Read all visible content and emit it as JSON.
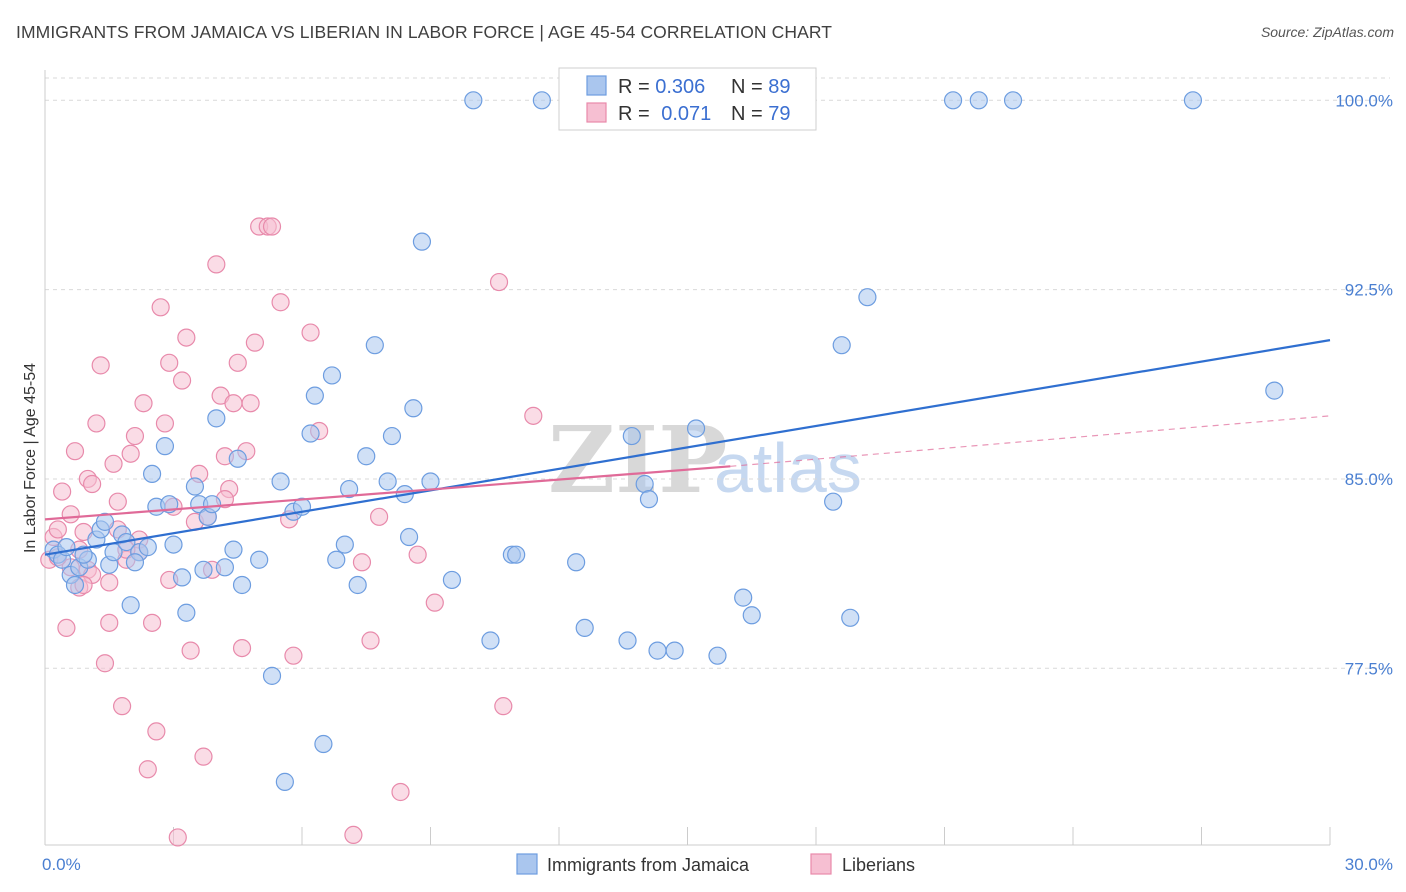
{
  "title": "IMMIGRANTS FROM JAMAICA VS LIBERIAN IN LABOR FORCE | AGE 45-54 CORRELATION CHART",
  "source": "Source: ZipAtlas.com",
  "watermark": {
    "zip": "ZIP",
    "atlas": "atlas"
  },
  "legend_top": [
    {
      "r_label": "R = ",
      "r_value": "0.306",
      "n_label": "N = ",
      "n_value": "89"
    },
    {
      "r_label": "R = ",
      "r_value": "0.071",
      "n_label": "N = ",
      "n_value": "79"
    }
  ],
  "legend_bottom": [
    "Immigrants from Jamaica",
    "Liberians"
  ],
  "colors": {
    "blue_fill": "#aac6ee",
    "blue_stroke": "#6d9de0",
    "blue_line": "#2f6fd0",
    "pink_fill": "#f6bfd2",
    "pink_stroke": "#e88aab",
    "pink_line": "#e06a98",
    "grid": "#d9d9d9",
    "tick_text": "#4a7fd1"
  },
  "chart_data": {
    "type": "scatter",
    "title": "IMMIGRANTS FROM JAMAICA VS LIBERIAN IN LABOR FORCE | AGE 45-54 CORRELATION CHART",
    "ylabel": "In Labor Force | Age 45-54",
    "xlabel": "",
    "xlim": [
      0,
      30
    ],
    "ylim": [
      70.5,
      101.2
    ],
    "x_tick_labels": [
      {
        "value": 0,
        "label": "0.0%"
      },
      {
        "value": 30,
        "label": "30.0%"
      }
    ],
    "y_tick_labels": [
      {
        "value": 100,
        "label": "100.0%"
      },
      {
        "value": 92.5,
        "label": "92.5%"
      },
      {
        "value": 85,
        "label": "85.0%"
      },
      {
        "value": 77.5,
        "label": "77.5%"
      }
    ],
    "grid": true,
    "legend_position": "top-center",
    "series": [
      {
        "name": "Immigrants from Jamaica",
        "r": 0.306,
        "n": 89,
        "trend": {
          "x": [
            0,
            30
          ],
          "y": [
            82.0,
            90.5
          ],
          "dashed_extension": false
        },
        "points": [
          [
            0.2,
            82.2
          ],
          [
            0.3,
            82.0
          ],
          [
            0.4,
            81.8
          ],
          [
            0.5,
            82.3
          ],
          [
            0.6,
            81.2
          ],
          [
            0.7,
            80.8
          ],
          [
            0.8,
            81.5
          ],
          [
            1.0,
            81.8
          ],
          [
            1.2,
            82.6
          ],
          [
            1.3,
            83.0
          ],
          [
            1.4,
            83.3
          ],
          [
            1.5,
            81.6
          ],
          [
            1.6,
            82.1
          ],
          [
            1.8,
            82.8
          ],
          [
            1.9,
            82.5
          ],
          [
            2.0,
            80.0
          ],
          [
            2.2,
            82.1
          ],
          [
            2.4,
            82.3
          ],
          [
            2.5,
            85.2
          ],
          [
            2.6,
            83.9
          ],
          [
            2.8,
            86.3
          ],
          [
            2.9,
            84.0
          ],
          [
            3.0,
            82.4
          ],
          [
            3.2,
            81.1
          ],
          [
            3.3,
            79.7
          ],
          [
            3.5,
            84.7
          ],
          [
            3.6,
            84.0
          ],
          [
            3.7,
            81.4
          ],
          [
            3.8,
            83.5
          ],
          [
            4.0,
            87.4
          ],
          [
            4.2,
            81.5
          ],
          [
            4.4,
            82.2
          ],
          [
            4.5,
            85.8
          ],
          [
            4.6,
            80.8
          ],
          [
            5.0,
            81.8
          ],
          [
            5.3,
            77.2
          ],
          [
            5.5,
            84.9
          ],
          [
            5.6,
            73.0
          ],
          [
            5.8,
            83.7
          ],
          [
            6.0,
            83.9
          ],
          [
            6.2,
            86.8
          ],
          [
            6.3,
            88.3
          ],
          [
            6.5,
            74.5
          ],
          [
            6.7,
            89.1
          ],
          [
            6.8,
            81.8
          ],
          [
            7.0,
            82.4
          ],
          [
            7.1,
            84.6
          ],
          [
            7.3,
            80.8
          ],
          [
            7.5,
            85.9
          ],
          [
            7.7,
            90.3
          ],
          [
            8.0,
            84.9
          ],
          [
            8.1,
            86.7
          ],
          [
            8.4,
            84.4
          ],
          [
            8.5,
            82.7
          ],
          [
            8.6,
            87.8
          ],
          [
            8.8,
            94.4
          ],
          [
            9.0,
            84.9
          ],
          [
            9.5,
            81.0
          ],
          [
            10.0,
            100.0
          ],
          [
            10.4,
            78.6
          ],
          [
            10.9,
            82.0
          ],
          [
            11.0,
            82.0
          ],
          [
            11.6,
            100.0
          ],
          [
            12.3,
            100.0
          ],
          [
            12.4,
            81.7
          ],
          [
            12.6,
            79.1
          ],
          [
            13.6,
            78.6
          ],
          [
            13.7,
            86.7
          ],
          [
            14.0,
            84.8
          ],
          [
            14.1,
            84.2
          ],
          [
            14.3,
            78.2
          ],
          [
            14.7,
            78.2
          ],
          [
            15.2,
            87.0
          ],
          [
            15.7,
            78.0
          ],
          [
            16.3,
            80.3
          ],
          [
            16.5,
            79.6
          ],
          [
            17.0,
            100.0
          ],
          [
            18.4,
            84.1
          ],
          [
            18.6,
            90.3
          ],
          [
            18.8,
            79.5
          ],
          [
            19.2,
            92.2
          ],
          [
            21.2,
            100.0
          ],
          [
            21.8,
            100.0
          ],
          [
            22.6,
            100.0
          ],
          [
            26.8,
            100.0
          ],
          [
            28.7,
            88.5
          ],
          [
            0.9,
            82.0
          ],
          [
            3.9,
            84.0
          ],
          [
            2.1,
            81.7
          ]
        ]
      },
      {
        "name": "Liberians",
        "r": 0.071,
        "n": 79,
        "trend": {
          "x": [
            0,
            16
          ],
          "y": [
            83.4,
            85.5
          ],
          "dashed_extension": true,
          "dash_to": {
            "x": 30,
            "y": 87.5
          }
        },
        "points": [
          [
            0.1,
            81.8
          ],
          [
            0.2,
            82.7
          ],
          [
            0.3,
            83.0
          ],
          [
            0.4,
            84.5
          ],
          [
            0.5,
            79.1
          ],
          [
            0.6,
            81.5
          ],
          [
            0.7,
            86.1
          ],
          [
            0.8,
            80.7
          ],
          [
            0.9,
            82.9
          ],
          [
            1.0,
            85.0
          ],
          [
            1.0,
            81.4
          ],
          [
            1.1,
            84.8
          ],
          [
            1.2,
            87.2
          ],
          [
            1.3,
            89.5
          ],
          [
            1.4,
            77.7
          ],
          [
            1.5,
            79.3
          ],
          [
            1.6,
            85.6
          ],
          [
            1.7,
            84.1
          ],
          [
            1.8,
            76.0
          ],
          [
            1.9,
            81.8
          ],
          [
            2.0,
            86.0
          ],
          [
            2.1,
            86.7
          ],
          [
            2.2,
            82.6
          ],
          [
            2.3,
            88.0
          ],
          [
            2.4,
            73.5
          ],
          [
            2.5,
            79.3
          ],
          [
            2.6,
            75.0
          ],
          [
            2.7,
            91.8
          ],
          [
            2.8,
            87.2
          ],
          [
            2.9,
            89.6
          ],
          [
            3.0,
            83.9
          ],
          [
            3.1,
            70.8
          ],
          [
            3.2,
            88.9
          ],
          [
            3.3,
            90.6
          ],
          [
            3.4,
            78.2
          ],
          [
            3.5,
            83.3
          ],
          [
            3.6,
            85.2
          ],
          [
            3.7,
            74.0
          ],
          [
            3.8,
            83.5
          ],
          [
            4.0,
            93.5
          ],
          [
            4.1,
            88.3
          ],
          [
            4.2,
            85.9
          ],
          [
            4.3,
            84.6
          ],
          [
            4.4,
            88.0
          ],
          [
            4.5,
            89.6
          ],
          [
            4.6,
            78.3
          ],
          [
            4.7,
            86.1
          ],
          [
            4.8,
            88.0
          ],
          [
            4.9,
            90.4
          ],
          [
            5.0,
            95.0
          ],
          [
            5.2,
            95.0
          ],
          [
            5.3,
            95.0
          ],
          [
            5.5,
            92.0
          ],
          [
            5.7,
            83.4
          ],
          [
            5.8,
            78.0
          ],
          [
            6.2,
            90.8
          ],
          [
            6.4,
            86.9
          ],
          [
            7.4,
            81.7
          ],
          [
            7.6,
            78.6
          ],
          [
            7.8,
            83.5
          ],
          [
            8.3,
            72.6
          ],
          [
            8.7,
            82.0
          ],
          [
            9.1,
            80.1
          ],
          [
            10.6,
            92.8
          ],
          [
            10.7,
            76.0
          ],
          [
            11.4,
            87.5
          ],
          [
            7.2,
            70.9
          ],
          [
            0.8,
            82.2
          ],
          [
            1.5,
            80.9
          ],
          [
            2.2,
            82.1
          ],
          [
            0.3,
            81.9
          ],
          [
            1.7,
            83.0
          ],
          [
            2.9,
            81.0
          ],
          [
            4.2,
            84.2
          ],
          [
            1.1,
            81.2
          ],
          [
            0.6,
            83.6
          ],
          [
            3.9,
            81.4
          ],
          [
            1.9,
            82.2
          ],
          [
            0.9,
            80.8
          ]
        ]
      }
    ]
  }
}
